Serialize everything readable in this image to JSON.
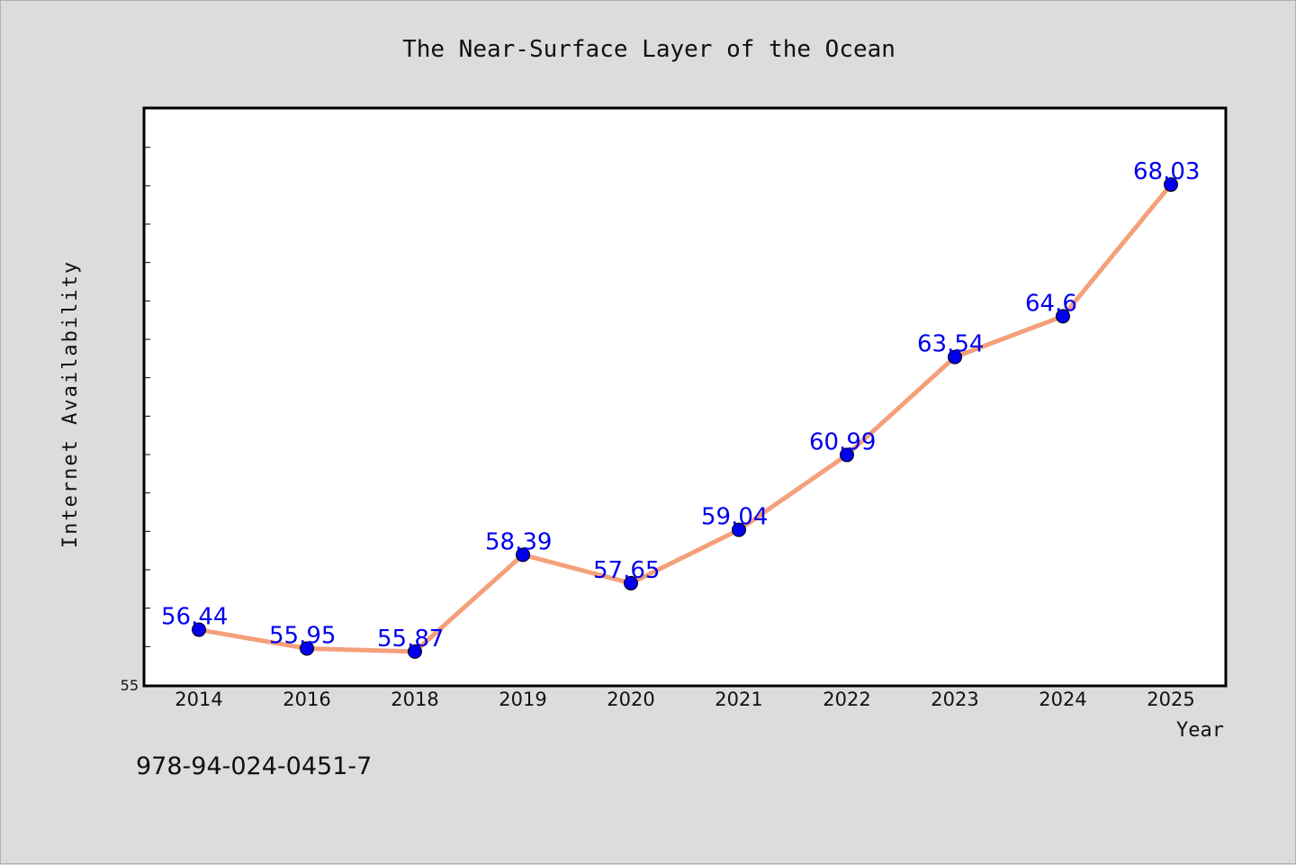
{
  "chart_data": {
    "type": "line",
    "title": "The Near-Surface Layer of the Ocean",
    "xlabel": "Year",
    "ylabel": "Internet Availability",
    "categories": [
      "2014",
      "2016",
      "2018",
      "2019",
      "2020",
      "2021",
      "2022",
      "2023",
      "2024",
      "2025"
    ],
    "series": [
      {
        "values": [
          56.44,
          55.95,
          55.87,
          58.39,
          57.65,
          59.04,
          60.99,
          63.54,
          64.6,
          68.03
        ],
        "labels": [
          "56.44",
          "55.95",
          "55.87",
          "58.39",
          "57.65",
          "59.04",
          "60.99",
          "63.54",
          "64.6",
          "68.03"
        ],
        "line_color": "#f4a07a",
        "marker_color": "#0000ee",
        "label_color": "#0000ee"
      }
    ],
    "ylim": [
      55,
      70
    ],
    "ytick_labels": [
      {
        "value": 55,
        "label": "55"
      }
    ],
    "ytick_step": 1,
    "grid": false,
    "legend": "none"
  },
  "footer_text": "978-94-024-0451-7"
}
